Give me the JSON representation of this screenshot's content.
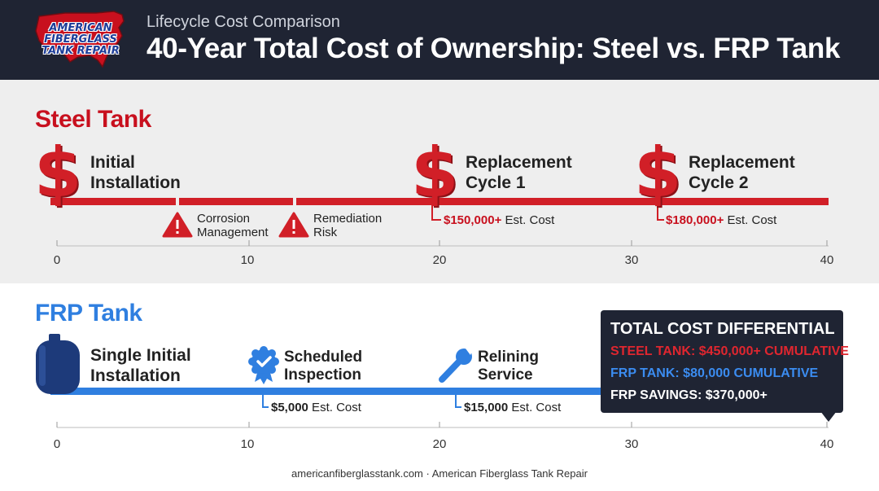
{
  "header": {
    "logo_lines": [
      "AMERICAN",
      "FIBERGLASS",
      "TANK REPAIR"
    ],
    "eyebrow": "Lifecycle Cost Comparison",
    "title": "40-Year Total Cost of Ownership: Steel vs. FRP Tank"
  },
  "colors": {
    "steel": "#d11f27",
    "frp": "#2f7fe0",
    "navy": "#1f2433",
    "panel": "#eeeeee"
  },
  "axis_ticks": [
    "0",
    "10",
    "20",
    "30",
    "40"
  ],
  "steel": {
    "title": "Steel Tank",
    "milestones": [
      {
        "icon": "dollar-icon",
        "year": 0,
        "line1": "Initial",
        "line2": "Installation"
      },
      {
        "icon": "dollar-icon",
        "year": 20,
        "line1": "Replacement",
        "line2": "Cycle 1",
        "cost_value": "$150,000+",
        "cost_suffix": " Est. Cost"
      },
      {
        "icon": "dollar-icon",
        "year": 31,
        "line1": "Replacement",
        "line2": "Cycle 2",
        "cost_value": "$180,000+",
        "cost_suffix": " Est. Cost"
      }
    ],
    "risks": [
      {
        "icon": "warning-icon",
        "line1": "Corrosion",
        "line2": "Management"
      },
      {
        "icon": "warning-icon",
        "line1": "Remediation",
        "line2": "Risk"
      }
    ]
  },
  "frp": {
    "title": "FRP Tank",
    "milestones": [
      {
        "icon": "tank-icon",
        "line1": "Single Initial",
        "line2": "Installation"
      },
      {
        "icon": "badge-check-icon",
        "line1": "Scheduled",
        "line2": "Inspection",
        "cost_value": "$5,000",
        "cost_suffix": " Est. Cost"
      },
      {
        "icon": "wrench-icon",
        "line1": "Relining",
        "line2": "Service",
        "cost_value": "$15,000",
        "cost_suffix": " Est. Cost"
      }
    ]
  },
  "callout": {
    "title": "TOTAL COST DIFFERENTIAL",
    "steel_line": "STEEL TANK: $450,000+ CUMULATIVE",
    "frp_line": "FRP TANK: $80,000 CUMULATIVE",
    "savings_line": "FRP SAVINGS: $370,000+"
  },
  "footer": "americanfiberglasstank.com · American Fiberglass Tank Repair"
}
